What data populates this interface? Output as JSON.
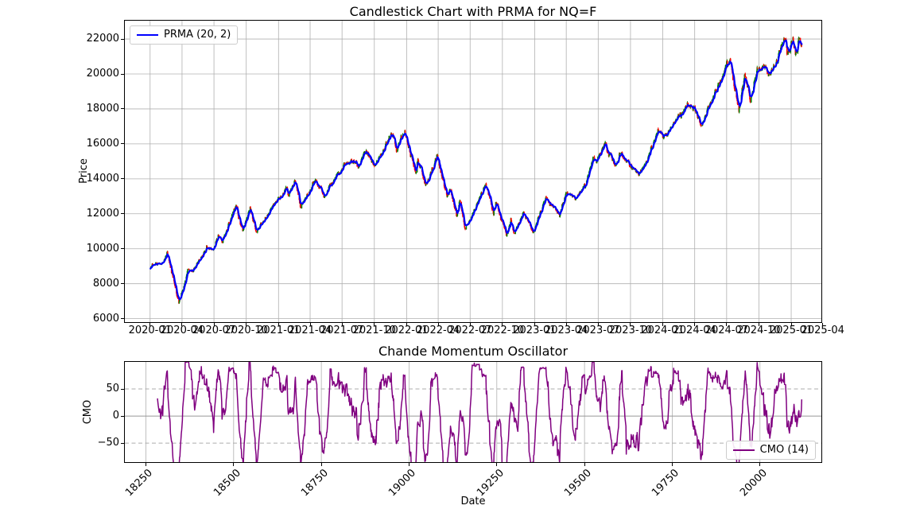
{
  "figure": {
    "background": "#ffffff",
    "grid_color": "#b0b0b0",
    "spine_color": "#000000",
    "text_color": "#000000"
  },
  "chart_data": [
    {
      "type": "candlestick",
      "title": "Candlestick Chart with PRMA for NQ=F",
      "symbol": "NQ=F",
      "ylabel": "Price",
      "grid": true,
      "ylim": [
        5800,
        23050
      ],
      "yticks": [
        6000,
        8000,
        10000,
        12000,
        14000,
        16000,
        18000,
        20000,
        22000
      ],
      "xlim_serial_days": [
        18190,
        20175
      ],
      "xtick_labels": [
        "2020-01",
        "2020-04",
        "2020-07",
        "2020-10",
        "2021-01",
        "2021-04",
        "2021-07",
        "2021-10",
        "2022-01",
        "2022-04",
        "2022-07",
        "2022-10",
        "2023-01",
        "2023-04",
        "2023-07",
        "2023-10",
        "2024-01",
        "2024-04",
        "2024-07",
        "2024-10",
        "2025-01",
        "2025-04"
      ],
      "up_color": "#008000",
      "down_color": "#ff0000",
      "legend": {
        "label": "PRMA (20, 2)",
        "color": "#0000ff",
        "position": "upper left"
      },
      "prma": {
        "window": 20,
        "param": 2,
        "color": "#0000ff",
        "linewidth": 2.2
      },
      "close_anchors": [
        [
          "2020-01-02",
          8870
        ],
        [
          "2020-01-17",
          9200
        ],
        [
          "2020-02-03",
          9110
        ],
        [
          "2020-02-19",
          9720
        ],
        [
          "2020-03-23",
          6860
        ],
        [
          "2020-04-17",
          8720
        ],
        [
          "2020-05-01",
          8700
        ],
        [
          "2020-06-10",
          10090
        ],
        [
          "2020-06-29",
          9950
        ],
        [
          "2020-07-13",
          10820
        ],
        [
          "2020-07-24",
          10390
        ],
        [
          "2020-09-02",
          12440
        ],
        [
          "2020-09-21",
          10960
        ],
        [
          "2020-10-12",
          12270
        ],
        [
          "2020-10-30",
          10960
        ],
        [
          "2020-12-31",
          12890
        ],
        [
          "2021-01-25",
          13480
        ],
        [
          "2021-01-29",
          12920
        ],
        [
          "2021-02-16",
          13890
        ],
        [
          "2021-03-05",
          12310
        ],
        [
          "2021-04-16",
          14000
        ],
        [
          "2021-05-12",
          13000
        ],
        [
          "2021-06-30",
          14560
        ],
        [
          "2021-07-26",
          15100
        ],
        [
          "2021-08-19",
          14750
        ],
        [
          "2021-09-07",
          15690
        ],
        [
          "2021-10-04",
          14740
        ],
        [
          "2021-11-19",
          16670
        ],
        [
          "2021-12-03",
          15710
        ],
        [
          "2021-12-27",
          16590
        ],
        [
          "2022-01-27",
          14320
        ],
        [
          "2022-02-02",
          15180
        ],
        [
          "2022-02-24",
          13620
        ],
        [
          "2022-03-29",
          15250
        ],
        [
          "2022-04-26",
          13010
        ],
        [
          "2022-05-04",
          13500
        ],
        [
          "2022-05-24",
          11800
        ],
        [
          "2022-06-02",
          12750
        ],
        [
          "2022-06-16",
          11100
        ],
        [
          "2022-08-15",
          13700
        ],
        [
          "2022-09-06",
          12020
        ],
        [
          "2022-09-12",
          12640
        ],
        [
          "2022-10-13",
          10700
        ],
        [
          "2022-10-25",
          11700
        ],
        [
          "2022-11-03",
          10750
        ],
        [
          "2022-12-01",
          12180
        ],
        [
          "2022-12-28",
          10920
        ],
        [
          "2023-02-02",
          12900
        ],
        [
          "2023-03-13",
          11950
        ],
        [
          "2023-03-31",
          13250
        ],
        [
          "2023-04-25",
          12880
        ],
        [
          "2023-05-24",
          13550
        ],
        [
          "2023-06-16",
          15250
        ],
        [
          "2023-06-26",
          14900
        ],
        [
          "2023-07-18",
          16000
        ],
        [
          "2023-08-18",
          14700
        ],
        [
          "2023-09-01",
          15560
        ],
        [
          "2023-10-26",
          14150
        ],
        [
          "2023-12-19",
          16900
        ],
        [
          "2024-01-04",
          16350
        ],
        [
          "2024-03-21",
          18470
        ],
        [
          "2024-04-19",
          17040
        ],
        [
          "2024-06-18",
          19900
        ],
        [
          "2024-07-10",
          20900
        ],
        [
          "2024-08-05",
          17850
        ],
        [
          "2024-08-22",
          19920
        ],
        [
          "2024-09-06",
          18440
        ],
        [
          "2024-09-26",
          20180
        ],
        [
          "2024-10-14",
          20450
        ],
        [
          "2024-11-01",
          19850
        ],
        [
          "2024-12-16",
          22100
        ],
        [
          "2024-12-20",
          21100
        ],
        [
          "2025-01-06",
          21940
        ],
        [
          "2025-01-13",
          20990
        ],
        [
          "2025-01-24",
          22080
        ],
        [
          "2025-01-31",
          21470
        ]
      ]
    },
    {
      "type": "line",
      "title": "Chande Momentum Oscillator",
      "xlabel": "Date",
      "ylabel": "CMO",
      "period": 14,
      "ylim": [
        -85,
        100
      ],
      "yticks": [
        {
          "value": 50,
          "label": "50"
        },
        {
          "value": 0,
          "label": "0"
        },
        {
          "value": -50,
          "label": "−50"
        }
      ],
      "xticks": [
        18250,
        18500,
        18750,
        19000,
        19250,
        19500,
        19750,
        20000
      ],
      "legend": {
        "label": "CMO (14)",
        "color": "#800080",
        "position": "lower right"
      },
      "line_color": "#800080",
      "hlines": [
        {
          "y": 50,
          "style": "dashed",
          "color": "#adadad"
        },
        {
          "y": 0,
          "style": "solid",
          "color": "#999999"
        },
        {
          "y": -50,
          "style": "dashed",
          "color": "#adadad"
        }
      ]
    }
  ]
}
